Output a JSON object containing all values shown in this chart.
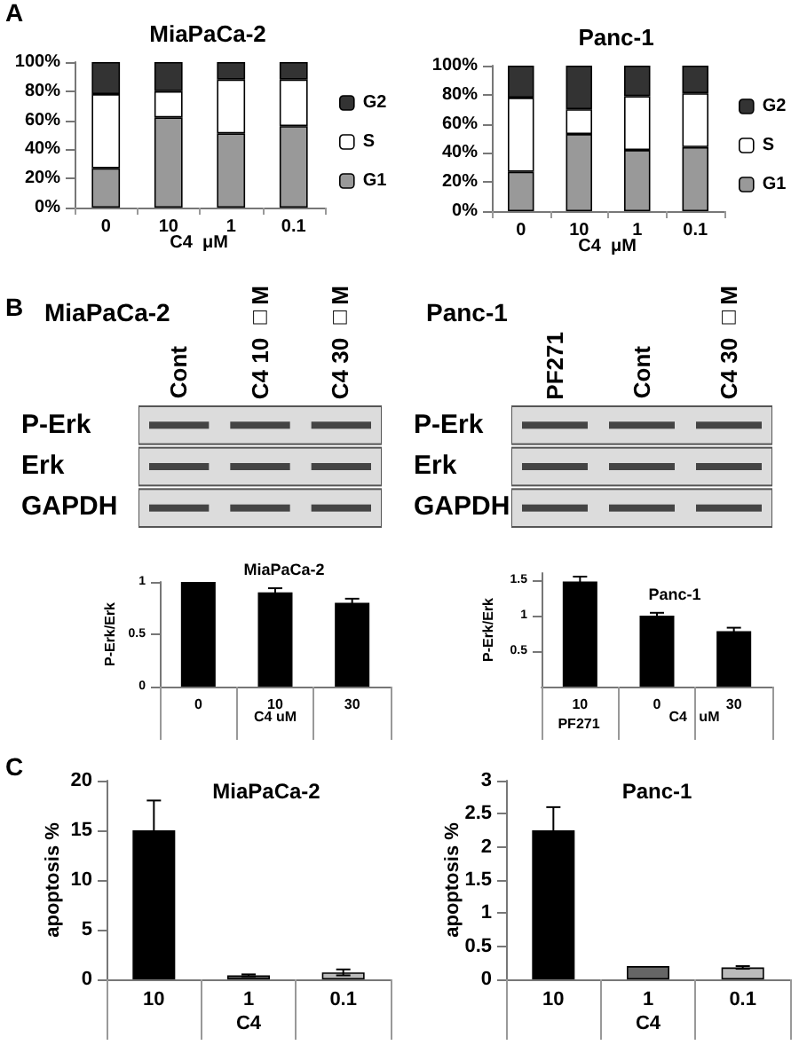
{
  "chart_data": [
    {
      "type": "bar",
      "title": "MiaPaCa-2",
      "xlabel": "C4  μM",
      "annotations": [
        "A"
      ],
      "categories": [
        "0",
        "10",
        "1",
        "0.1"
      ],
      "stacked": true,
      "legend": "right",
      "series": [
        {
          "name": "G1",
          "color": "#999999",
          "values": [
            27,
            62,
            51,
            56
          ]
        },
        {
          "name": "S",
          "color": "#ffffff",
          "values": [
            51,
            18,
            37,
            32
          ]
        },
        {
          "name": "G2",
          "color": "#333333",
          "values": [
            22,
            20,
            12,
            12
          ]
        }
      ],
      "ylim": [
        0,
        100
      ],
      "yticks": [
        {
          "value": 0,
          "label": "0%"
        },
        {
          "value": 20,
          "label": "20%"
        },
        {
          "value": 40,
          "label": "40%"
        },
        {
          "value": 60,
          "label": "60%"
        },
        {
          "value": 80,
          "label": "80%"
        },
        {
          "value": 100,
          "label": "100%"
        }
      ]
    },
    {
      "type": "bar",
      "title": "Panc-1",
      "xlabel": "C4  μM",
      "categories": [
        "0",
        "10",
        "1",
        "0.1"
      ],
      "stacked": true,
      "legend": "right",
      "series": [
        {
          "name": "G1",
          "color": "#999999",
          "values": [
            27,
            53,
            42,
            44
          ]
        },
        {
          "name": "S",
          "color": "#ffffff",
          "values": [
            51,
            17,
            37,
            37
          ]
        },
        {
          "name": "G2",
          "color": "#333333",
          "values": [
            22,
            30,
            21,
            19
          ]
        }
      ],
      "ylim": [
        0,
        100
      ],
      "yticks": [
        {
          "value": 0,
          "label": "0%"
        },
        {
          "value": 20,
          "label": "20%"
        },
        {
          "value": 40,
          "label": "40%"
        },
        {
          "value": 60,
          "label": "60%"
        },
        {
          "value": 80,
          "label": "80%"
        },
        {
          "value": 100,
          "label": "100%"
        }
      ]
    },
    {
      "type": "other",
      "title": "MiaPaCa-2",
      "annotations": [
        "B"
      ],
      "categories": [
        "Cont",
        "C4 10 □M",
        "C4 30 □M"
      ],
      "y_categories": [
        "P-Erk",
        "Erk",
        "GAPDH"
      ]
    },
    {
      "type": "other",
      "title": "Panc-1",
      "categories": [
        "PF271",
        "Cont",
        "C4 30 □M"
      ],
      "y_categories": [
        "P-Erk",
        "Erk",
        "GAPDH"
      ]
    },
    {
      "type": "bar",
      "title": "MiaPaCa-2",
      "ylabel": "P-Erk/Erk",
      "xlabel": "C4 uM",
      "categories": [
        "0",
        "10",
        "30"
      ],
      "values": [
        1,
        0.9,
        0.8
      ],
      "errors": [
        null,
        0.04,
        0.04
      ],
      "color": "#000000",
      "ylim": [
        0,
        1
      ],
      "yticks": [
        0,
        0.5,
        1
      ]
    },
    {
      "type": "bar",
      "title": "Panc-1",
      "ylabel": "P-Erk/Erk",
      "xlabel": "C4   uM",
      "annotations": [
        "PF271"
      ],
      "categories": [
        "10",
        "0",
        "30"
      ],
      "values": [
        1.48,
        1.0,
        0.78
      ],
      "errors": [
        0.07,
        0.04,
        0.05
      ],
      "color": "#000000",
      "ylim": [
        0,
        1.6
      ],
      "yticks": [
        0.5,
        1,
        1.5
      ]
    },
    {
      "type": "bar",
      "title": "MiaPaCa-2",
      "ylabel": "apoptosis %",
      "xlabel": "C4",
      "annotations": [
        "C"
      ],
      "categories": [
        "10",
        "1",
        "0.1"
      ],
      "values": [
        15,
        0.4,
        0.7
      ],
      "errors": [
        3,
        0.1,
        0.3
      ],
      "colors": [
        "#000000",
        "#555555",
        "#bbbbbb"
      ],
      "ylim": [
        0,
        20
      ],
      "yticks": [
        0,
        5,
        10,
        15,
        20
      ]
    },
    {
      "type": "bar",
      "title": "Panc-1",
      "ylabel": "apoptosis %",
      "xlabel": "C4",
      "categories": [
        "10",
        "1",
        "0.1"
      ],
      "values": [
        2.25,
        0.2,
        0.18
      ],
      "errors": [
        0.35,
        null,
        0.02
      ],
      "colors": [
        "#000000",
        "#666666",
        "#bbbbbb"
      ],
      "ylim": [
        0,
        3
      ],
      "yticks": [
        0,
        0.5,
        1,
        1.5,
        2,
        2.5,
        3
      ]
    }
  ]
}
